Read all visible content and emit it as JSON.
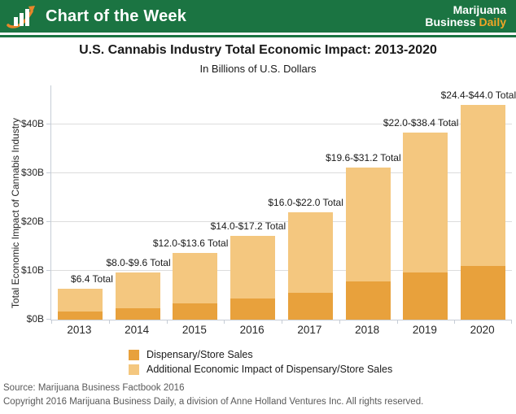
{
  "header": {
    "banner_title": "Chart of the Week",
    "brand_line1": "Marijuana",
    "brand_business": "Business",
    "brand_daily": "Daily",
    "banner_green": "#1B7442",
    "daily_orange": "#F0A526"
  },
  "chart": {
    "title": "U.S. Cannabis Industry Total Economic Impact: 2013-2020",
    "subtitle": "In Billions of U.S. Dollars",
    "y_axis_title": "Total Economic Impact of Cannabis Industry"
  },
  "chart_data": {
    "type": "bar",
    "stacked": true,
    "title": "U.S. Cannabis Industry Total Economic Impact: 2013-2020",
    "subtitle": "In Billions of U.S. Dollars",
    "xlabel": "",
    "ylabel": "Total Economic Impact of Cannabis Industry",
    "categories": [
      "2013",
      "2014",
      "2015",
      "2016",
      "2017",
      "2018",
      "2019",
      "2020"
    ],
    "series": [
      {
        "name": "Dispensary/Store Sales",
        "color": "#E8A13C",
        "values": [
          1.6,
          2.4,
          3.4,
          4.3,
          5.5,
          7.8,
          9.6,
          11.0
        ]
      },
      {
        "name": "Additional Economic Impact of Dispensary/Store Sales",
        "color": "#F4C77F",
        "values": [
          4.8,
          7.2,
          10.2,
          12.9,
          16.5,
          23.4,
          28.8,
          33.0
        ]
      }
    ],
    "totals_plotted": [
      6.4,
      9.6,
      13.6,
      17.2,
      22.0,
      31.2,
      38.4,
      44.0
    ],
    "bar_labels": [
      "$6.4 Total",
      "$8.0-$9.6 Total",
      "$12.0-$13.6 Total",
      "$14.0-$17.2 Total",
      "$16.0-$22.0 Total",
      "$19.6-$31.2 Total",
      "$22.0-$38.4 Total",
      "$24.4-$44.0 Total"
    ],
    "y_ticks": [
      {
        "value": 0,
        "label": "$0B"
      },
      {
        "value": 10,
        "label": "$10B"
      },
      {
        "value": 20,
        "label": "$20B"
      },
      {
        "value": 30,
        "label": "$30B"
      },
      {
        "value": 40,
        "label": "$40B"
      }
    ],
    "ylim": [
      0,
      48
    ],
    "grid": true,
    "legend_position": "bottom"
  },
  "footer": {
    "source": "Source: Marijuana Business Factbook 2016",
    "copyright": "Copyright 2016 Marijuana Business Daily, a division of Anne Holland Ventures Inc. All rights reserved."
  }
}
